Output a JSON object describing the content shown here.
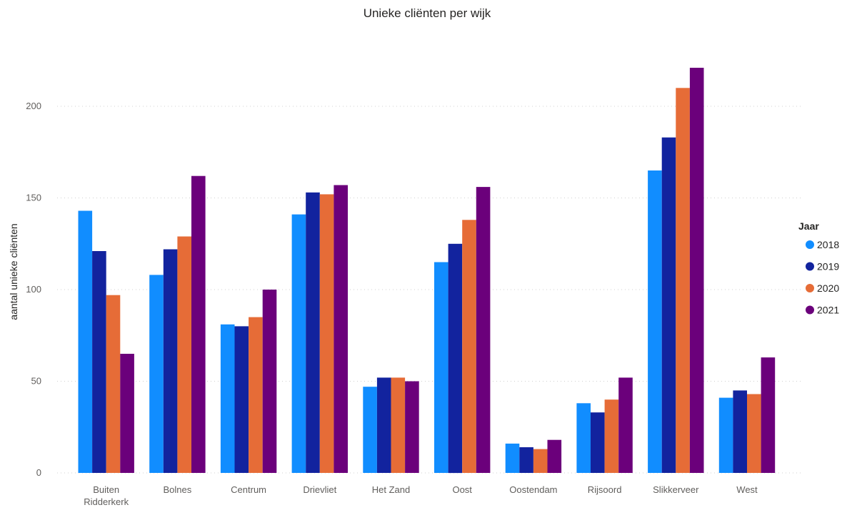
{
  "chart_data": {
    "type": "bar",
    "title": "Unieke cliënten per wijk",
    "ylabel": "aantal unieke cliënten",
    "xlabel": "",
    "ylim": [
      0,
      230
    ],
    "yticks": [
      0,
      50,
      100,
      150,
      200
    ],
    "grid": true,
    "legend_title": "Jaar",
    "legend_position": "right",
    "categories": [
      [
        "Buiten",
        "Ridderkerk"
      ],
      [
        "Bolnes"
      ],
      [
        "Centrum"
      ],
      [
        "Drievliet"
      ],
      [
        "Het Zand"
      ],
      [
        "Oost"
      ],
      [
        "Oostendam"
      ],
      [
        "Rijsoord"
      ],
      [
        "Slikkerveer"
      ],
      [
        "West"
      ]
    ],
    "series": [
      {
        "name": "2018",
        "color": "#118dff",
        "values": [
          143,
          108,
          81,
          141,
          47,
          115,
          16,
          38,
          165,
          41
        ]
      },
      {
        "name": "2019",
        "color": "#12239e",
        "values": [
          121,
          122,
          80,
          153,
          52,
          125,
          14,
          33,
          183,
          45
        ]
      },
      {
        "name": "2020",
        "color": "#e66c37",
        "values": [
          97,
          129,
          85,
          152,
          52,
          138,
          13,
          40,
          210,
          43
        ]
      },
      {
        "name": "2021",
        "color": "#6b007b",
        "values": [
          65,
          162,
          100,
          157,
          50,
          156,
          18,
          52,
          221,
          63
        ]
      }
    ]
  }
}
